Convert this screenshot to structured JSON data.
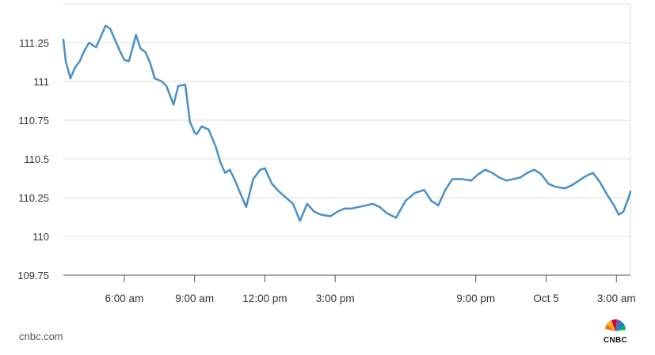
{
  "chart_data": {
    "type": "line",
    "title": "",
    "xlabel": "",
    "ylabel": "",
    "ylim": [
      109.75,
      111.5
    ],
    "y_ticks": [
      109.75,
      110,
      110.25,
      110.5,
      110.75,
      111,
      111.25
    ],
    "y_tick_labels": [
      "109.75",
      "110",
      "110.25",
      "110.5",
      "110.75",
      "111",
      "111.25"
    ],
    "grid": true,
    "x_ticks": [
      {
        "label": "6:00 am",
        "t": 6
      },
      {
        "label": "9:00 am",
        "t": 9
      },
      {
        "label": "12:00 pm",
        "t": 12
      },
      {
        "label": "3:00 pm",
        "t": 15
      },
      {
        "label": "9:00 pm",
        "t": 21
      },
      {
        "label": "Oct 5",
        "t": 24
      },
      {
        "label": "3:00 am",
        "t": 27
      }
    ],
    "series": [
      {
        "color": "#4a90c8",
        "x": [
          3.4,
          3.5,
          3.7,
          3.9,
          4.1,
          4.3,
          4.5,
          4.8,
          5.0,
          5.2,
          5.4,
          5.6,
          5.8,
          6.0,
          6.2,
          6.5,
          6.7,
          6.9,
          7.1,
          7.3,
          7.6,
          7.8,
          8.1,
          8.3,
          8.6,
          8.8,
          9.0,
          9.1,
          9.3,
          9.6,
          9.9,
          10.1,
          10.3,
          10.5,
          10.7,
          11.0,
          11.2,
          11.5,
          11.8,
          12.0,
          12.3,
          12.6,
          12.9,
          13.2,
          13.5,
          13.8,
          14.1,
          14.4,
          14.8,
          15.1,
          15.4,
          15.7,
          16.0,
          16.3,
          16.6,
          16.9,
          17.2,
          17.6,
          18.0,
          18.4,
          18.8,
          19.1,
          19.4,
          19.7,
          20.0,
          20.4,
          20.8,
          21.1,
          21.4,
          21.7,
          22.0,
          22.3,
          22.6,
          22.9,
          23.2,
          23.5,
          23.8,
          24.1,
          24.4,
          24.8,
          25.1,
          25.4,
          25.7,
          26.0,
          26.3,
          26.6,
          26.9,
          27.1,
          27.3,
          27.5,
          27.6
        ],
        "values": [
          111.27,
          111.13,
          111.02,
          111.09,
          111.13,
          111.2,
          111.25,
          111.22,
          111.29,
          111.36,
          111.34,
          111.27,
          111.2,
          111.14,
          111.13,
          111.3,
          111.21,
          111.19,
          111.12,
          111.02,
          111.0,
          110.97,
          110.85,
          110.97,
          110.98,
          110.74,
          110.67,
          110.66,
          110.71,
          110.69,
          110.58,
          110.48,
          110.41,
          110.43,
          110.37,
          110.26,
          110.19,
          110.37,
          110.43,
          110.44,
          110.34,
          110.29,
          110.25,
          110.21,
          110.1,
          110.21,
          110.16,
          110.14,
          110.13,
          110.16,
          110.18,
          110.18,
          110.19,
          110.2,
          110.21,
          110.19,
          110.15,
          110.12,
          110.23,
          110.28,
          110.3,
          110.23,
          110.2,
          110.3,
          110.37,
          110.37,
          110.36,
          110.4,
          110.43,
          110.41,
          110.38,
          110.36,
          110.37,
          110.38,
          110.41,
          110.43,
          110.4,
          110.34,
          110.32,
          110.31,
          110.33,
          110.36,
          110.39,
          110.41,
          110.35,
          110.27,
          110.2,
          110.14,
          110.16,
          110.24,
          110.29
        ]
      }
    ]
  },
  "footer": {
    "source": "cnbc.com",
    "logo_text": "CNBC",
    "logo_icon": "peacock-logo-icon"
  }
}
